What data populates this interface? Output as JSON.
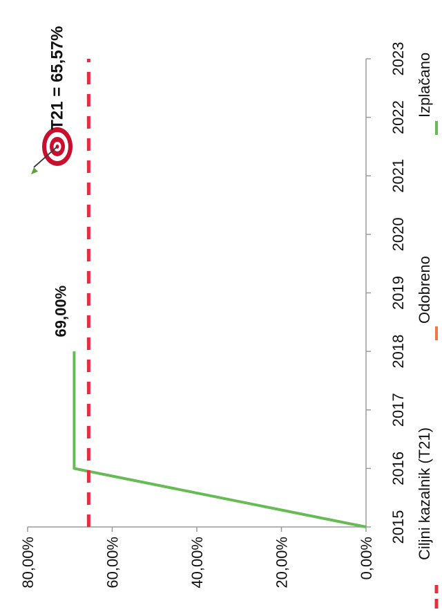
{
  "chart_data": {
    "type": "line",
    "title": "",
    "xlabel": "",
    "ylabel": "",
    "x": [
      2015,
      2016,
      2017,
      2018,
      2019,
      2020,
      2021,
      2022,
      2023
    ],
    "ylim": [
      0,
      80
    ],
    "y_ticks": [
      "0,00%",
      "20,00%",
      "40,00%",
      "60,00%",
      "80,00%"
    ],
    "x_ticks": [
      "2015",
      "2016",
      "2017",
      "2018",
      "2019",
      "2020",
      "2021",
      "2022",
      "2023"
    ],
    "grid": false,
    "orientation": "rotated 90° clockwise (page viewed in portrait)",
    "series": [
      {
        "name": "Izplačano",
        "color": "#66bb55",
        "style": "solid",
        "points": [
          [
            2015,
            0.0
          ],
          [
            2016,
            69.0
          ],
          [
            2018,
            69.0
          ]
        ]
      },
      {
        "name": "Odobreno",
        "color": "#ee7744",
        "style": "solid",
        "points": []
      },
      {
        "name": "Ciljni kazalnik (T21)",
        "color": "#e23040",
        "style": "dashed",
        "points": [
          [
            2015,
            65.57
          ],
          [
            2023,
            65.57
          ]
        ]
      }
    ],
    "annotations": [
      {
        "text": "69,00%",
        "x": 2018,
        "y": 69.0
      },
      {
        "text": "T21 = 65,57%",
        "x": 2022.4,
        "y": 65.57,
        "icon": "target-icon"
      }
    ],
    "legend": {
      "placement": "bottom",
      "items": [
        "Ciljni kazalnik (T21)",
        "Odobreno",
        "Izplačano"
      ]
    }
  }
}
